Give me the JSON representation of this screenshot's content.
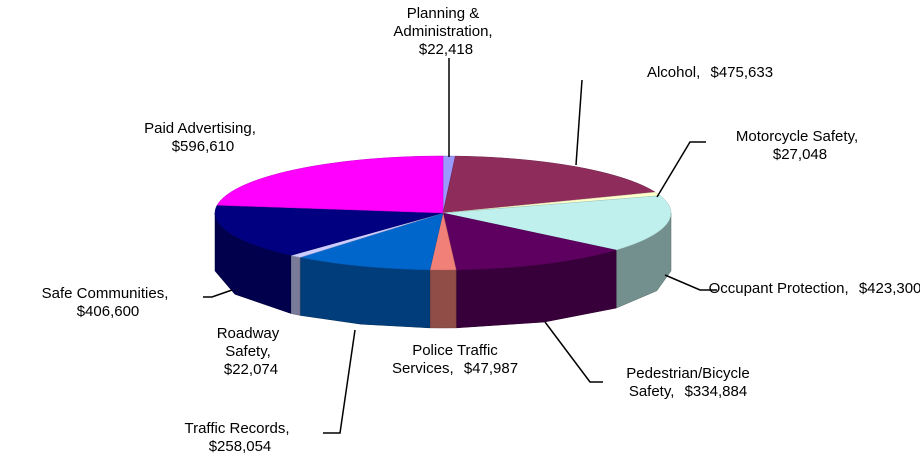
{
  "chart_data": {
    "type": "pie3d",
    "categories": [
      "Planning & Administration,",
      "Alcohol,",
      "Motorcycle Safety,",
      "Occupant Protection,",
      "Pedestrian/Bicycle Safety,",
      "Police Traffic Services,",
      "Traffic Records,",
      "Roadway Safety,",
      "Safe Communities,",
      "Paid Advertising,"
    ],
    "values": [
      22418,
      475633,
      27048,
      423300,
      334884,
      47987,
      258054,
      22074,
      406600,
      596610
    ],
    "value_labels": [
      "$22,418",
      "$475,633",
      "$27,048",
      "$423,300",
      "$334,884",
      "$47,987",
      "$258,054",
      "$22,074",
      "$406,600",
      "$596,610"
    ],
    "colors": [
      "#9999ff",
      "#8e2c5c",
      "#ffffcc",
      "#bff0ee",
      "#5e0060",
      "#f08078",
      "#0066cc",
      "#ccccff",
      "#000080",
      "#ff00ff"
    ]
  }
}
